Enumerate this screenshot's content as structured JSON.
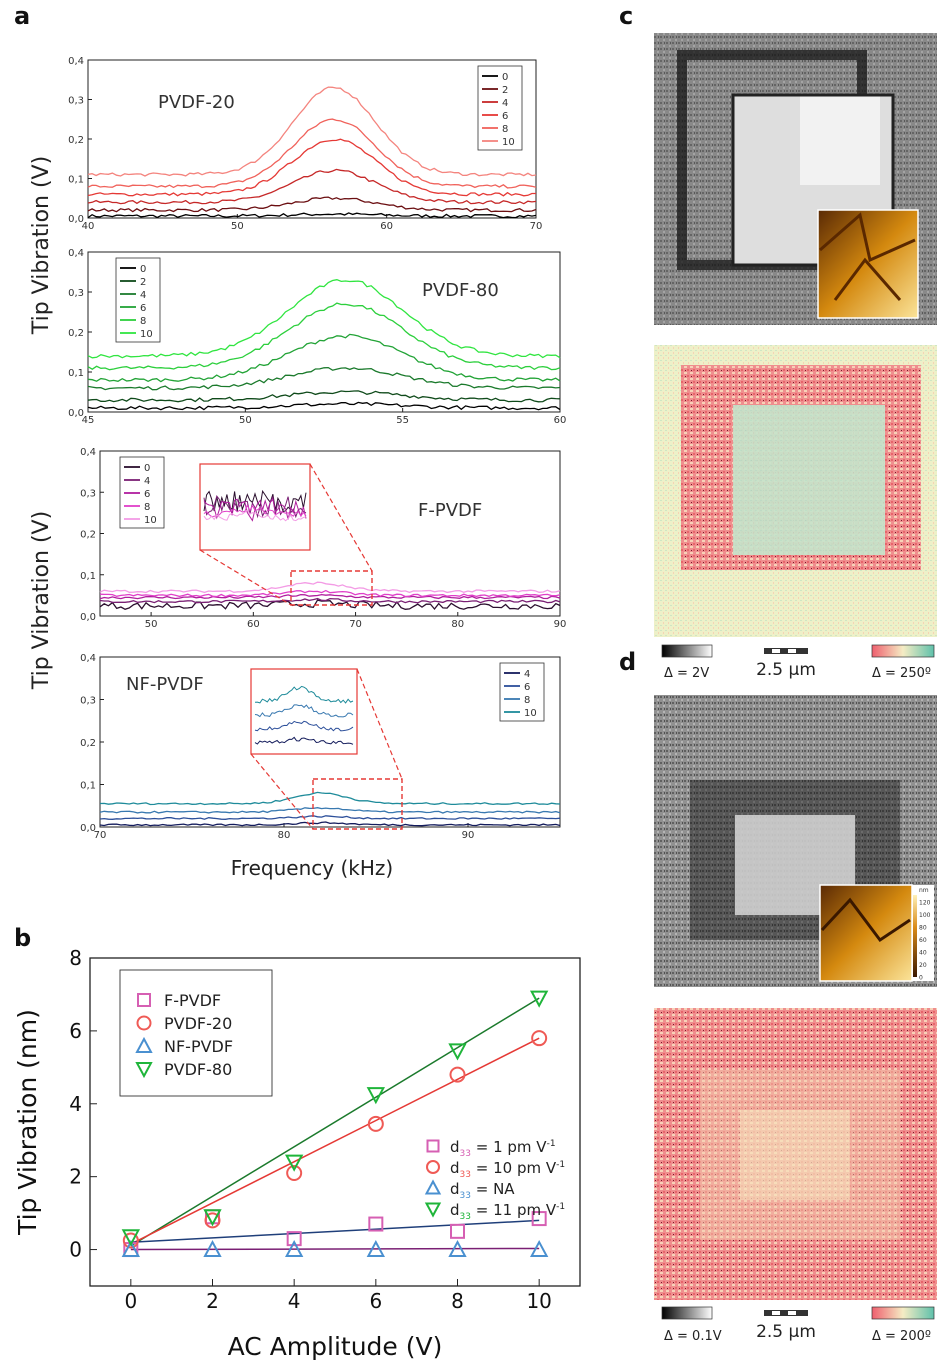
{
  "panel_labels": {
    "a": "a",
    "b": "b",
    "c": "c",
    "d": "d"
  },
  "shared_labels": {
    "a_ylabel_top": "Tip Vibration (V)",
    "a_ylabel_bottom": "Tip Vibration (V)",
    "a_xlabel": "Frequency (kHz)"
  },
  "colors": {
    "pvdf20": [
      "#000000",
      "#6b0f12",
      "#c62828",
      "#e53935",
      "#f0625b",
      "#f4847e"
    ],
    "pvdf80": [
      "#000000",
      "#0f4a1a",
      "#1b7a2c",
      "#22a336",
      "#2ccf3c",
      "#30e540"
    ],
    "fpvdf": [
      "#2b0f2e",
      "#7a1f74",
      "#b01e9e",
      "#e03fc9",
      "#f39be5"
    ],
    "nfpvdf": [
      "#141c5c",
      "#2c4f9a",
      "#3979b0",
      "#1e8b9a"
    ],
    "b_fpvdf": "#d65fb3",
    "b_pvdf20": "#ef5a55",
    "b_nfpvdf": "#4a90d0",
    "b_pvdf80": "#1fb53a",
    "fit_nf": "#1f3f7a",
    "fit_pvdf80": "#1b7a2c",
    "fit_pvdf20": "#e53935",
    "fit_fpvdf": "#7a1f74",
    "inset_box": "#e53935"
  },
  "scale_bars": {
    "c_gray_label": "Δ = 2V",
    "c_length": "2.5 μm",
    "c_phase_label": "Δ = 250º",
    "d_gray_label": "Δ = 0.1V",
    "d_length": "2.5 μm",
    "d_phase_label": "Δ = 200º"
  },
  "inset_colorbar_ticks": [
    "nm",
    "120",
    "100",
    "80",
    "60",
    "40",
    "20",
    "0"
  ],
  "chart_data": [
    {
      "type": "line",
      "panel": "a",
      "sample_label": "PVDF-20",
      "xlim": [
        40,
        70
      ],
      "ylim": [
        0,
        0.4
      ],
      "xticks": [
        "40",
        "50",
        "60",
        "70"
      ],
      "yticks": [
        "0,0",
        "0,1",
        "0,2",
        "0,3",
        "0,4"
      ],
      "legend_placement": "top-right",
      "peak_x": 56.5,
      "series": [
        {
          "name": "0",
          "baseline": 0.005,
          "peak": 0.01
        },
        {
          "name": "2",
          "baseline": 0.02,
          "peak": 0.05
        },
        {
          "name": "4",
          "baseline": 0.04,
          "peak": 0.12
        },
        {
          "name": "6",
          "baseline": 0.06,
          "peak": 0.2
        },
        {
          "name": "8",
          "baseline": 0.08,
          "peak": 0.25
        },
        {
          "name": "10",
          "baseline": 0.11,
          "peak": 0.33
        }
      ]
    },
    {
      "type": "line",
      "panel": "a",
      "sample_label": "PVDF-80",
      "xlim": [
        45,
        60
      ],
      "ylim": [
        0,
        0.4
      ],
      "xticks": [
        "45",
        "50",
        "55",
        "60"
      ],
      "yticks": [
        "0,0",
        "0,1",
        "0,2",
        "0,3",
        "0,4"
      ],
      "legend_placement": "top-left",
      "peak_x": 53.2,
      "series": [
        {
          "name": "0",
          "baseline": 0.01,
          "peak": 0.02
        },
        {
          "name": "2",
          "baseline": 0.03,
          "peak": 0.05
        },
        {
          "name": "4",
          "baseline": 0.06,
          "peak": 0.11
        },
        {
          "name": "6",
          "baseline": 0.08,
          "peak": 0.19
        },
        {
          "name": "8",
          "baseline": 0.11,
          "peak": 0.27
        },
        {
          "name": "10",
          "baseline": 0.14,
          "peak": 0.33
        }
      ]
    },
    {
      "type": "line",
      "panel": "a",
      "sample_label": "F-PVDF",
      "xlim": [
        45,
        90
      ],
      "ylim": [
        0,
        0.4
      ],
      "xticks": [
        "50",
        "60",
        "70",
        "80",
        "90"
      ],
      "yticks": [
        "0,0",
        "0,1",
        "0,2",
        "0,3",
        "0,4"
      ],
      "legend_placement": "top-left",
      "peak_x": 66,
      "series": [
        {
          "name": "0",
          "baseline": 0.025,
          "peak": 0.03
        },
        {
          "name": "4",
          "baseline": 0.035,
          "peak": 0.04
        },
        {
          "name": "6",
          "baseline": 0.045,
          "peak": 0.05
        },
        {
          "name": "8",
          "baseline": 0.05,
          "peak": 0.06
        },
        {
          "name": "10",
          "baseline": 0.06,
          "peak": 0.08
        }
      ]
    },
    {
      "type": "line",
      "panel": "a",
      "sample_label": "NF-PVDF",
      "xlim": [
        70,
        95
      ],
      "ylim": [
        0,
        0.4
      ],
      "xticks": [
        "70",
        "80",
        "90"
      ],
      "yticks": [
        "0,0",
        "0,1",
        "0,2",
        "0,3",
        "0,4"
      ],
      "legend_placement": "top-right",
      "peak_x": 82,
      "series": [
        {
          "name": "4",
          "baseline": 0.005,
          "peak": 0.01
        },
        {
          "name": "6",
          "baseline": 0.02,
          "peak": 0.025
        },
        {
          "name": "8",
          "baseline": 0.035,
          "peak": 0.045
        },
        {
          "name": "10",
          "baseline": 0.055,
          "peak": 0.08
        }
      ]
    },
    {
      "type": "scatter",
      "panel": "b",
      "xlabel": "AC Amplitude (V)",
      "ylabel": "Tip Vibration (nm)",
      "xlim": [
        -1,
        11
      ],
      "ylim": [
        -1,
        8
      ],
      "xticks": [
        "0",
        "2",
        "4",
        "6",
        "8",
        "10"
      ],
      "yticks": [
        "0",
        "2",
        "4",
        "6",
        "8"
      ],
      "legend_placement": "top-left",
      "series": [
        {
          "name": "F-PVDF",
          "marker": "square",
          "x": [
            0,
            2,
            4,
            6,
            8,
            10
          ],
          "values": [
            0.0,
            0.9,
            0.3,
            0.7,
            0.5,
            0.85
          ]
        },
        {
          "name": "PVDF-20",
          "marker": "circle",
          "x": [
            0,
            2,
            4,
            6,
            8,
            10
          ],
          "values": [
            0.25,
            0.8,
            2.1,
            3.45,
            4.8,
            5.8
          ]
        },
        {
          "name": "NF-PVDF",
          "marker": "triangle-up",
          "x": [
            0,
            2,
            4,
            6,
            8,
            10
          ],
          "values": [
            0.0,
            0.0,
            0.0,
            0.0,
            0.0,
            0.0
          ]
        },
        {
          "name": "PVDF-80",
          "marker": "triangle-down",
          "x": [
            0,
            2,
            4,
            6,
            8,
            10
          ],
          "values": [
            0.35,
            0.9,
            2.4,
            4.25,
            5.45,
            6.9
          ]
        }
      ],
      "fits": [
        {
          "series": "PVDF-80",
          "x": [
            0,
            10
          ],
          "y": [
            0.1,
            6.9
          ]
        },
        {
          "series": "PVDF-20",
          "x": [
            0,
            10
          ],
          "y": [
            0.15,
            5.8
          ]
        },
        {
          "series": "NF-PVDF",
          "x": [
            0,
            10
          ],
          "y": [
            0.2,
            0.8
          ]
        },
        {
          "series": "F-PVDF",
          "x": [
            0,
            10
          ],
          "y": [
            0.0,
            0.03
          ]
        }
      ],
      "annotations": [
        {
          "d": "d",
          "sub": "33",
          "text": " = 1 pm V",
          "sup": "-1",
          "marker": "square"
        },
        {
          "d": "d",
          "sub": "33",
          "text": " = 10 pm V",
          "sup": "-1",
          "marker": "circle"
        },
        {
          "d": "d",
          "sub": "33",
          "text": " = NA",
          "sup": "",
          "marker": "triangle-up"
        },
        {
          "d": "d",
          "sub": "33",
          "text": " = 11 pm V",
          "sup": "-1",
          "marker": "triangle-down"
        }
      ]
    }
  ]
}
